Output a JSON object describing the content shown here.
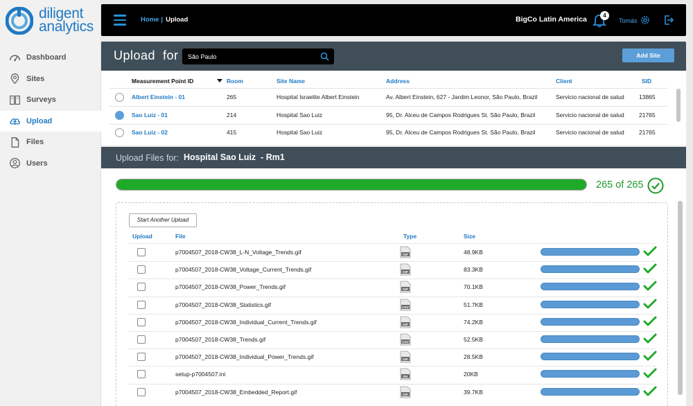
{
  "brand": {
    "line1": "diligent",
    "line2": "analytics"
  },
  "nav": [
    {
      "label": "Dashboard",
      "icon": "dashboard-icon",
      "active": false
    },
    {
      "label": "Sites",
      "icon": "location-pin-icon",
      "active": false
    },
    {
      "label": "Surveys",
      "icon": "surveys-icon",
      "active": false
    },
    {
      "label": "Upload",
      "icon": "cloud-upload-icon",
      "active": true
    },
    {
      "label": "Files",
      "icon": "file-icon",
      "active": false
    },
    {
      "label": "Users",
      "icon": "user-icon",
      "active": false
    }
  ],
  "topbar": {
    "breadcrumb_home": "Home",
    "breadcrumb_sep": "|",
    "breadcrumb_current": "Upload",
    "org": "BigCo Latin America",
    "notification_count": "4",
    "user": "Tomás"
  },
  "upload_header": {
    "title": "Upload  for",
    "search_value": "São Paulo",
    "add_site_label": "Add Site"
  },
  "sites_table": {
    "headers": {
      "mp": "Measurement Point ID",
      "room": "Room",
      "site": "Site Name",
      "address": "Address",
      "client": "Client",
      "sid": "SID"
    },
    "rows": [
      {
        "mp": "Albert Einstein - 01",
        "room": "265",
        "site": "Hospital Israelite Albert Einstein",
        "address": "Av. Albert Einstein, 627 - Jardim Leonor, São Paulo, Brazil",
        "client": "Servicio nacional de salud",
        "sid": "13865",
        "selected": false
      },
      {
        "mp": "Sao Luiz - 01",
        "room": "214",
        "site": "Hospital Sao Luiz",
        "address": "95, Dr. Alceu de Campos Rodrigues St. São Paulo, Brazil",
        "client": "Servicio nacional de salud",
        "sid": "21765",
        "selected": true
      },
      {
        "mp": "Sao Luiz - 02",
        "room": "415",
        "site": "Hospital Sao Luiz",
        "address": "95, Dr. Alceu de Campos Rodrigues St. São Paulo, Brazil",
        "client": "Servicio nacional de salud",
        "sid": "21765",
        "selected": false
      }
    ]
  },
  "files_section": {
    "label": "Upload Files for:",
    "site": "Hospital Sao Luiz  - Rm1",
    "progress_count": "265 of 265",
    "progress_fraction": 1.0,
    "start_another_label": "Start Another Upload",
    "headers": {
      "upload": "Upload",
      "file": "File",
      "type": "Type",
      "size": "Size"
    },
    "files": [
      {
        "name": "p7004507_2018-CW38_L-N_Voltage_Trends.gif",
        "type": "GIF",
        "size": "48.9KB",
        "progress": 1.0
      },
      {
        "name": "p7004507_2018-CW38_Voltage_Current_Trends.gif",
        "type": "GIF",
        "size": "83.3KB",
        "progress": 1.0
      },
      {
        "name": "p7004507_2018-CW38_Power_Trends.gif",
        "type": "GIF",
        "size": "70.1KB",
        "progress": 1.0
      },
      {
        "name": "p7004507_2018-CW38_Statistics.gif",
        "type": "CSV",
        "size": "51.7KB",
        "progress": 1.0
      },
      {
        "name": "p7004507_2018-CW38_Individual_Current_Trends.gif",
        "type": "GIF",
        "size": "74.2KB",
        "progress": 1.0
      },
      {
        "name": "p7004507_2018-CW38_Trends.gif",
        "type": "CSV",
        "size": "52.5KB",
        "progress": 1.0
      },
      {
        "name": "p7004507_2018-CW38_Individual_Power_Trends.gif",
        "type": "GIF",
        "size": "28.5KB",
        "progress": 1.0
      },
      {
        "name": "setup-p7004507.ini",
        "type": "INI",
        "size": "20KB",
        "progress": 1.0
      },
      {
        "name": "p7004507_2018-CW38_Embedded_Report.gif",
        "type": "GIF",
        "size": "39.7KB",
        "progress": 1.0
      }
    ]
  },
  "colors": {
    "accent_blue": "#1f7ac4",
    "header_slate": "#3f4e59",
    "success_green": "#1faa2a",
    "file_bar_blue": "#5a9bd5"
  }
}
